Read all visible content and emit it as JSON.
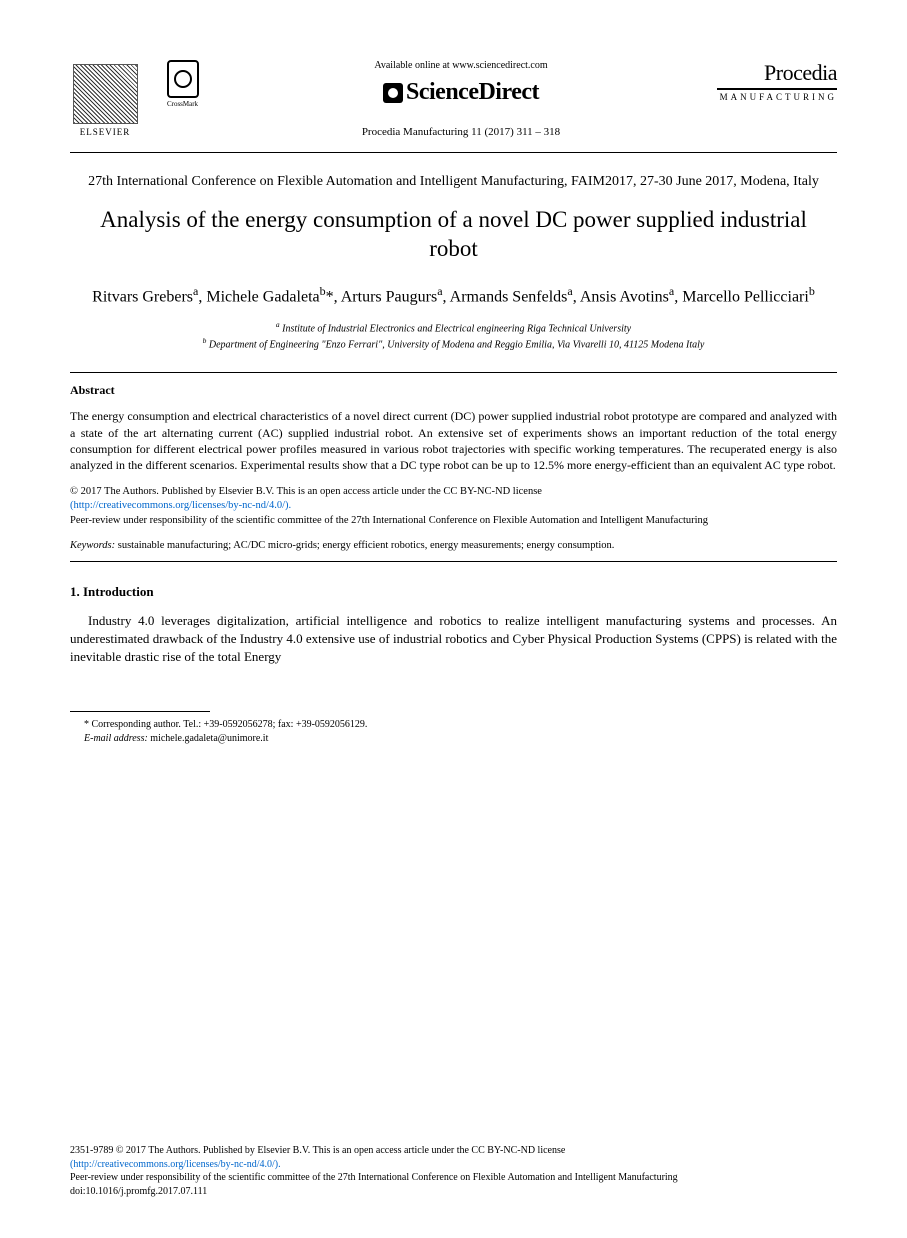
{
  "header": {
    "elsevier_label": "ELSEVIER",
    "crossmark_label": "CrossMark",
    "available_text": "Available online at www.sciencedirect.com",
    "sciencedirect": "ScienceDirect",
    "journal_ref": "Procedia Manufacturing 11 (2017) 311 – 318",
    "procedia": "Procedia",
    "manufacturing": "MANUFACTURING"
  },
  "conference": "27th International Conference on Flexible Automation and Intelligent Manufacturing, FAIM2017, 27-30 June 2017, Modena, Italy",
  "title": "Analysis of the energy consumption of a novel DC power supplied industrial robot",
  "authors_html": "Ritvars Grebers<sup>a</sup>, Michele Gadaleta<sup>b</sup>*, Arturs Paugurs<sup>a</sup>, Armands Senfelds<sup>a</sup>, Ansis Avotins<sup>a</sup>, Marcello Pellicciari<sup>b</sup>",
  "affiliations": {
    "a": "Institute of Industrial Electronics and Electrical engineering Riga Technical University",
    "b": "Department of Engineering \"Enzo Ferrari\", University of Modena and Reggio Emilia, Via Vivarelli 10, 41125 Modena Italy"
  },
  "abstract": {
    "heading": "Abstract",
    "text": "The energy consumption and electrical characteristics of a novel direct current (DC) power supplied industrial robot prototype are compared and analyzed with a state of the art alternating current (AC) supplied industrial robot. An extensive set of experiments shows an important reduction of the total energy consumption for different electrical power profiles measured in various robot trajectories with specific working temperatures. The recuperated energy is also analyzed in the different scenarios. Experimental results show that a DC type robot can be up to 12.5% more energy-efficient than an equivalent AC type robot."
  },
  "copyright": {
    "line1": "© 2017 The Authors. Published by Elsevier B.V. This is an open access article under the CC BY-NC-ND license",
    "license_url": "(http://creativecommons.org/licenses/by-nc-nd/4.0/).",
    "peer_review": "Peer-review under responsibility of the scientific committee of the 27th International Conference on Flexible Automation and Intelligent Manufacturing"
  },
  "keywords": {
    "label": "Keywords:",
    "text": " sustainable manufacturing; AC/DC micro-grids; energy efficient robotics, energy measurements; energy consumption."
  },
  "introduction": {
    "heading": "1. Introduction",
    "text": "Industry 4.0 leverages digitalization, artificial intelligence and robotics to realize intelligent manufacturing systems and processes. An underestimated drawback of the Industry 4.0 extensive use of industrial robotics and Cyber Physical Production Systems (CPPS) is related with the inevitable drastic rise of the total Energy"
  },
  "footnote": {
    "corresponding": "* Corresponding author. Tel.: +39-0592056278; fax: +39-0592056129.",
    "email_label": "E-mail address:",
    "email": " michele.gadaleta@unimore.it"
  },
  "footer": {
    "issn_line": "2351-9789 © 2017 The Authors. Published by Elsevier B.V. This is an open access article under the CC BY-NC-ND license",
    "license_url": "(http://creativecommons.org/licenses/by-nc-nd/4.0/).",
    "peer_review": "Peer-review under responsibility of the scientific committee of the 27th International Conference on Flexible Automation and Intelligent Manufacturing",
    "doi": "doi:10.1016/j.promfg.2017.07.111"
  },
  "colors": {
    "text": "#000000",
    "link": "#0066cc",
    "background": "#ffffff"
  }
}
